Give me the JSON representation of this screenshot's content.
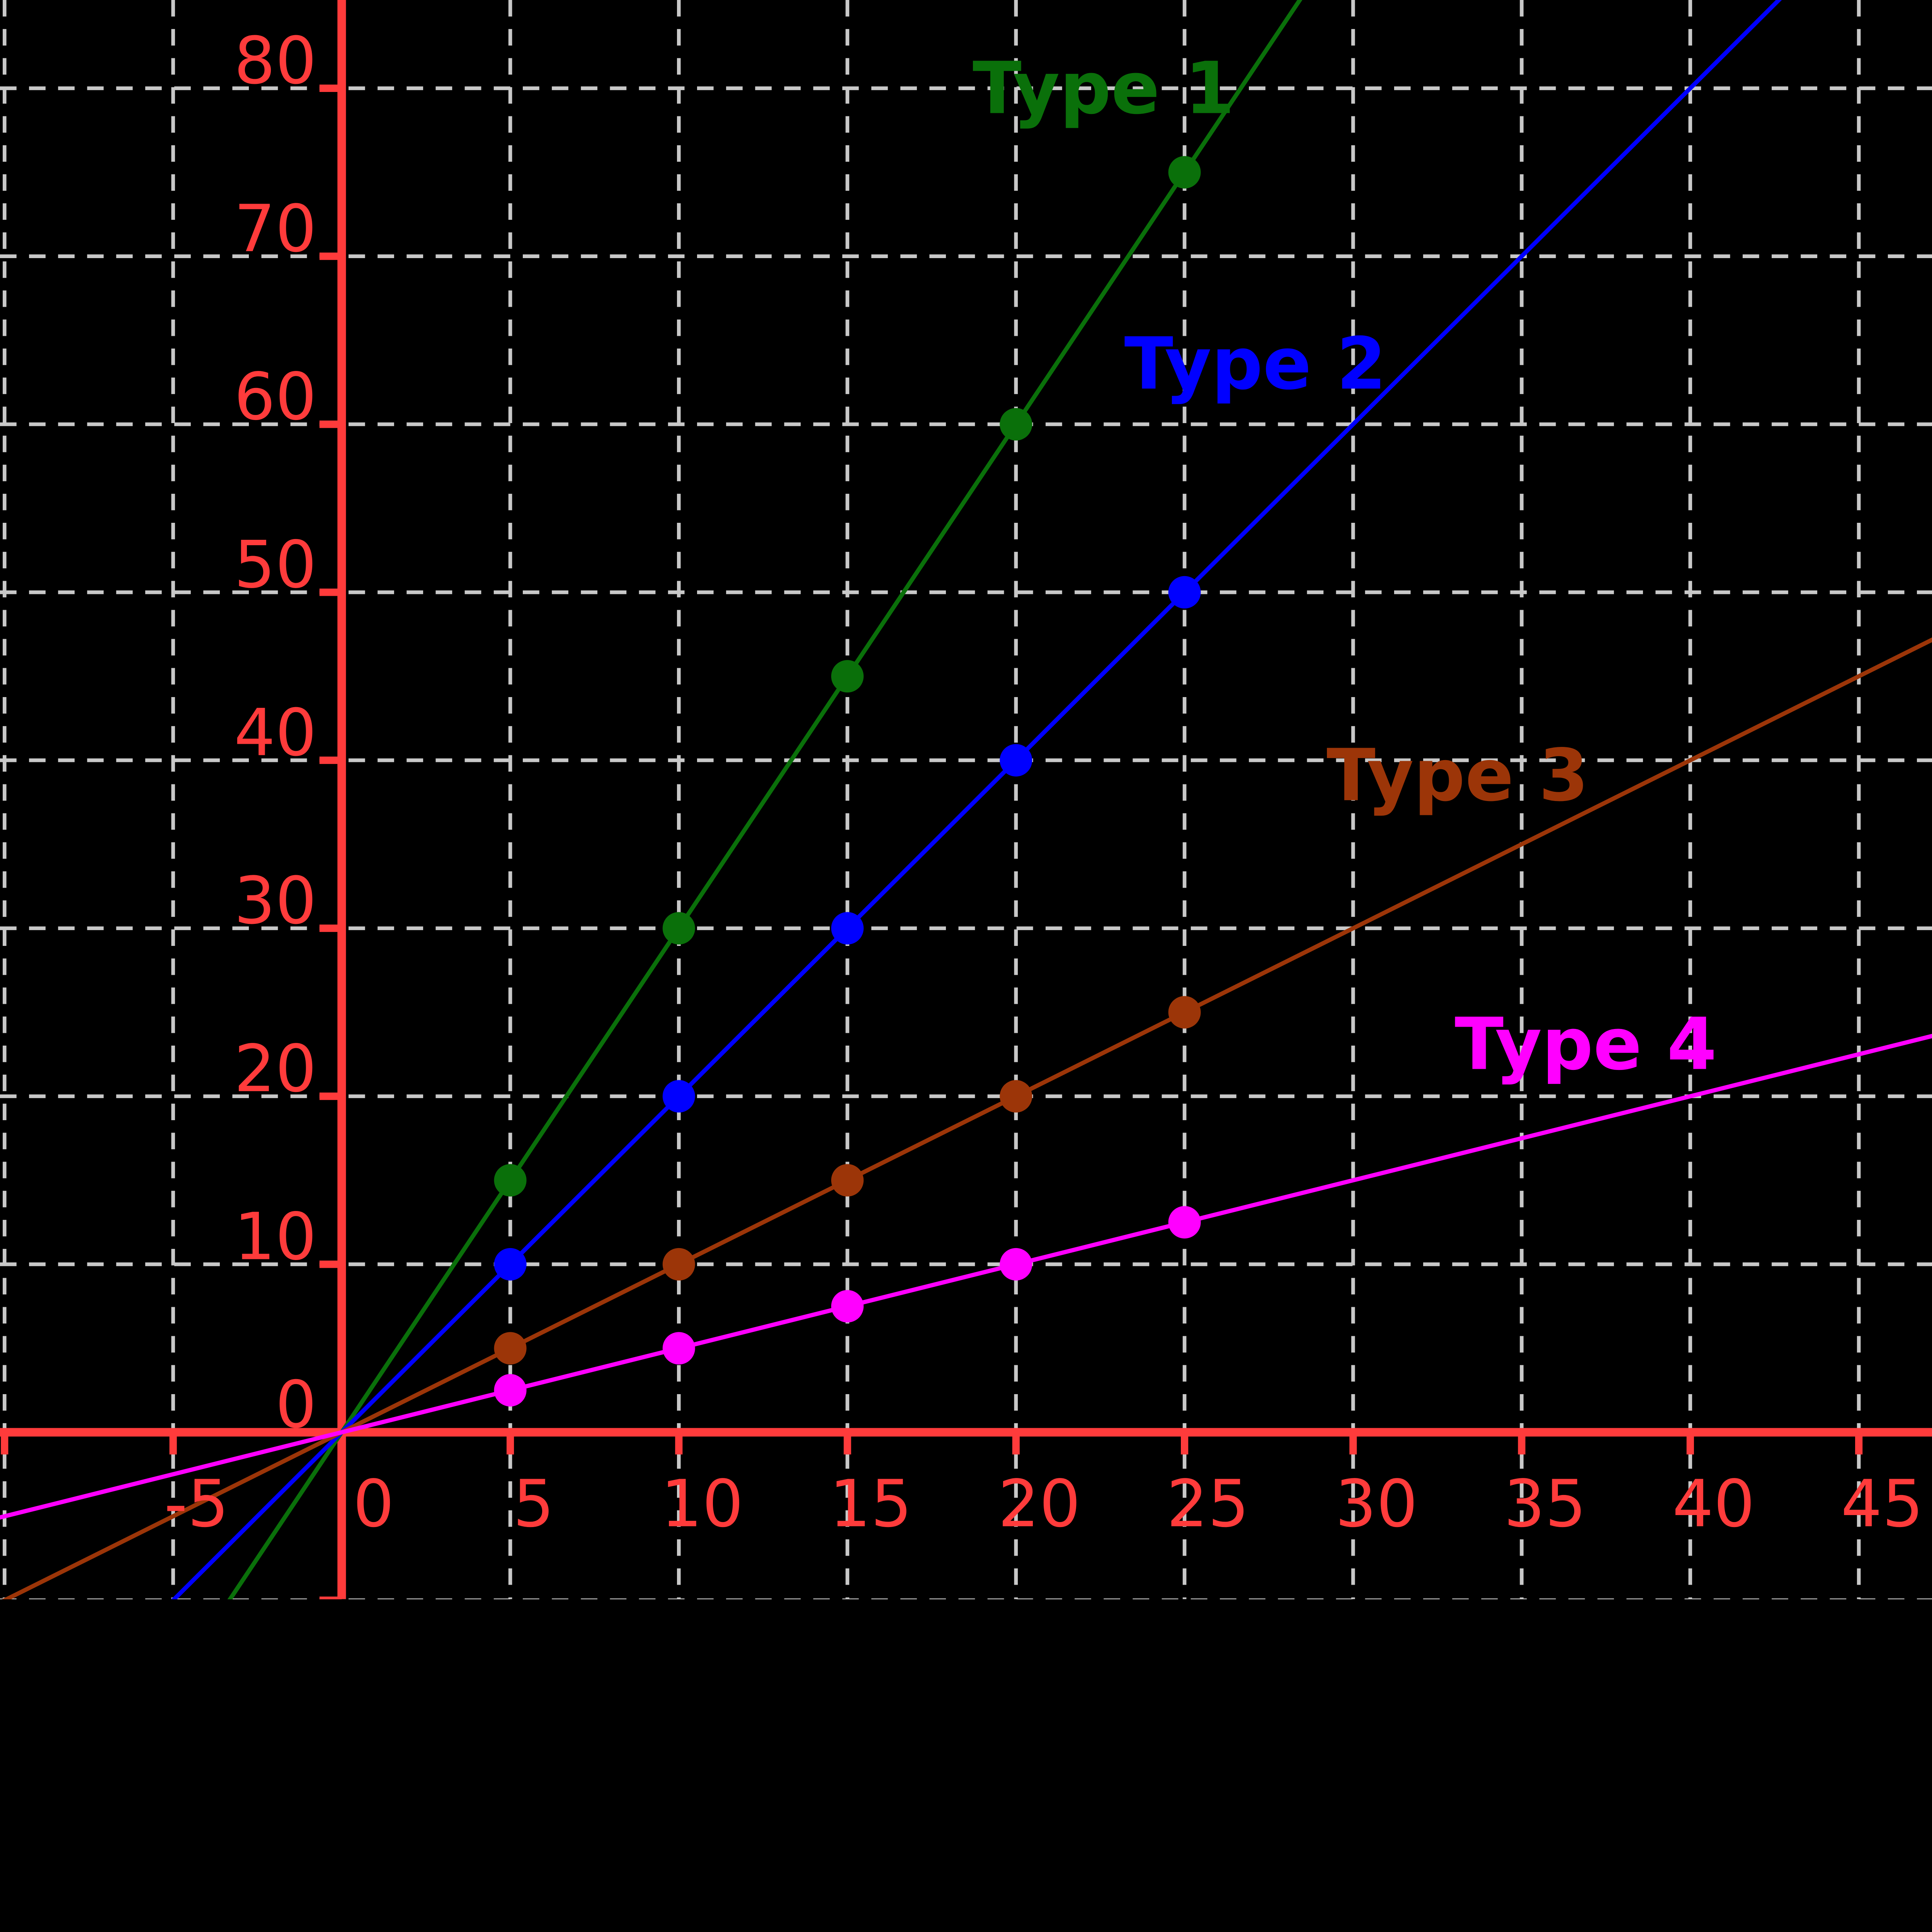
{
  "chart_data": {
    "type": "line",
    "x_axis": {
      "range": [
        -10.2,
        47.3
      ],
      "gridline_step": 5,
      "grid_values": [
        -10,
        -5,
        5,
        10,
        15,
        20,
        25,
        30,
        35,
        40,
        45
      ],
      "tick_labels": [
        "-5",
        "0",
        "5",
        "10",
        "15",
        "20",
        "25",
        "30",
        "35",
        "40",
        "45"
      ],
      "tick_values": [
        -5,
        0,
        5,
        10,
        15,
        20,
        25,
        30,
        35,
        40,
        45
      ]
    },
    "y_axis": {
      "range": [
        -9.9,
        85.2
      ],
      "gridline_step": 10,
      "grid_values": [
        -10,
        10,
        20,
        30,
        40,
        50,
        60,
        70,
        80
      ],
      "tick_labels": [
        "0",
        "10",
        "20",
        "30",
        "40",
        "50",
        "60",
        "70",
        "80"
      ],
      "tick_values": [
        0,
        10,
        20,
        30,
        40,
        50,
        60,
        70,
        80
      ]
    },
    "series": [
      {
        "name": "Type 1",
        "color": "#0a700a",
        "slope": 3,
        "x": [
          5,
          10,
          15,
          20,
          25
        ],
        "y": [
          15,
          30,
          45,
          60,
          75
        ],
        "label_pos": {
          "x": 22.6,
          "y": 80.1
        }
      },
      {
        "name": "Type 2",
        "color": "#0000ff",
        "slope": 2,
        "x": [
          5,
          10,
          15,
          20,
          25
        ],
        "y": [
          10,
          20,
          30,
          40,
          50
        ],
        "label_pos": {
          "x": 27.1,
          "y": 63.7
        }
      },
      {
        "name": "Type 3",
        "color": "#9c3508",
        "slope": 1,
        "x": [
          5,
          10,
          15,
          20,
          25
        ],
        "y": [
          5,
          10,
          15,
          20,
          25
        ],
        "label_pos": {
          "x": 33.1,
          "y": 39.2
        }
      },
      {
        "name": "Type 4",
        "color": "#ff00ff",
        "slope": 0.5,
        "x": [
          5,
          10,
          15,
          20,
          25
        ],
        "y": [
          2.5,
          5,
          7.5,
          10,
          12.5
        ],
        "label_pos": {
          "x": 36.9,
          "y": 23.2
        }
      }
    ],
    "style": {
      "background": "#000000",
      "axis_color": "#ff3b3b",
      "tick_label_color": "#ff3b3b",
      "grid_color": "#c8c8c8",
      "grid_dash": [
        58,
        44
      ],
      "legend": "inline-labels"
    }
  }
}
